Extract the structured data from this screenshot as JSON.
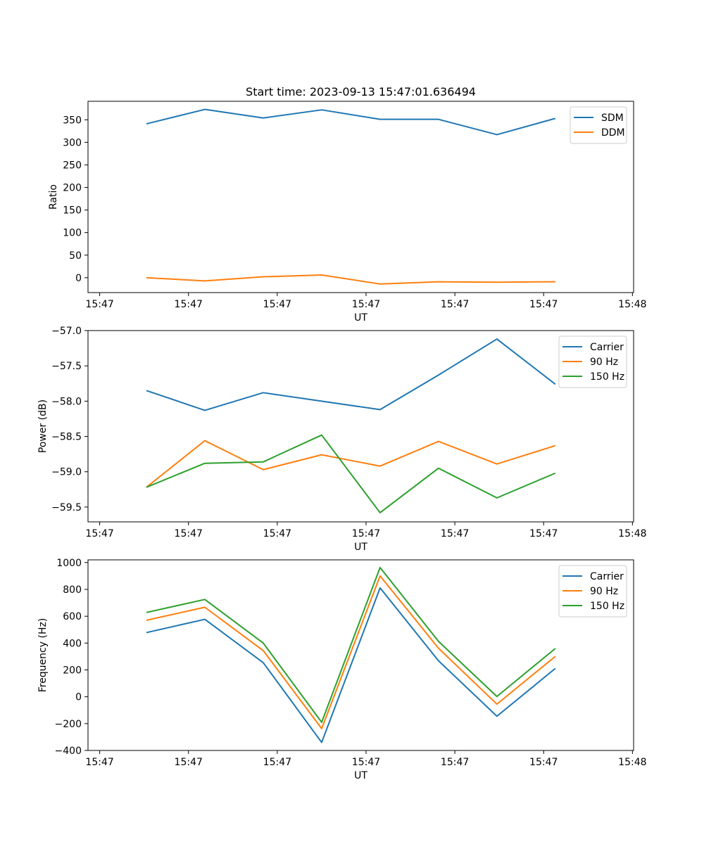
{
  "chart_data": [
    {
      "type": "line",
      "title": "Start time: 2023-09-13 15:47:01.636494",
      "xlabel": "UT",
      "ylabel": "Ratio",
      "x": [
        1,
        2,
        3,
        4,
        5,
        6,
        7,
        8
      ],
      "xticklabels": [
        "15:47",
        "15:47",
        "15:47",
        "15:47",
        "15:47",
        "15:47",
        "15:48"
      ],
      "xticks": [
        0.2,
        1.72,
        3.24,
        4.76,
        6.28,
        7.8,
        9.32
      ],
      "xlim": [
        0.0,
        9.34
      ],
      "ylim": [
        -33,
        391
      ],
      "yticks": [
        0,
        50,
        100,
        150,
        200,
        250,
        300,
        350
      ],
      "yticklabels": [
        "0",
        "50",
        "100",
        "150",
        "200",
        "250",
        "300",
        "350"
      ],
      "legend": "top-right",
      "series": [
        {
          "name": "SDM",
          "color": "#1f77b4",
          "values": [
            341,
            373,
            354,
            372,
            351,
            351,
            317,
            353
          ]
        },
        {
          "name": "DDM",
          "color": "#ff7f0e",
          "values": [
            0,
            -7,
            2,
            6,
            -14,
            -9,
            -10,
            -9
          ]
        }
      ]
    },
    {
      "type": "line",
      "title": "",
      "xlabel": "UT",
      "ylabel": "Power (dB)",
      "x": [
        1,
        2,
        3,
        4,
        5,
        6,
        7,
        8
      ],
      "xticklabels": [
        "15:47",
        "15:47",
        "15:47",
        "15:47",
        "15:47",
        "15:47",
        "15:48"
      ],
      "xticks": [
        0.2,
        1.72,
        3.24,
        4.76,
        6.28,
        7.8,
        9.32
      ],
      "xlim": [
        0.0,
        9.34
      ],
      "ylim": [
        -59.71,
        -57.0
      ],
      "yticks": [
        -57.0,
        -57.5,
        -58.0,
        -58.5,
        -59.0,
        -59.5
      ],
      "yticklabels": [
        "−57.0",
        "−57.5",
        "−58.0",
        "−58.5",
        "−59.0",
        "−59.5"
      ],
      "legend": "top-right",
      "series": [
        {
          "name": "Carrier",
          "color": "#1f77b4",
          "values": [
            -57.85,
            -58.13,
            -57.88,
            -58.0,
            -58.12,
            -57.63,
            -57.12,
            -57.76
          ]
        },
        {
          "name": "90 Hz",
          "color": "#ff7f0e",
          "values": [
            -59.22,
            -58.56,
            -58.97,
            -58.76,
            -58.92,
            -58.57,
            -58.89,
            -58.63
          ]
        },
        {
          "name": "150 Hz",
          "color": "#2ca02c",
          "values": [
            -59.22,
            -58.88,
            -58.86,
            -58.48,
            -59.58,
            -58.95,
            -59.37,
            -59.02
          ]
        }
      ]
    },
    {
      "type": "line",
      "title": "",
      "xlabel": "UT",
      "ylabel": "Frequency (Hz)",
      "x": [
        1,
        2,
        3,
        4,
        5,
        6,
        7,
        8
      ],
      "xticklabels": [
        "15:47",
        "15:47",
        "15:47",
        "15:47",
        "15:47",
        "15:47",
        "15:48"
      ],
      "xticks": [
        0.2,
        1.72,
        3.24,
        4.76,
        6.28,
        7.8,
        9.32
      ],
      "xlim": [
        0.0,
        9.34
      ],
      "ylim": [
        -400,
        1020
      ],
      "yticks": [
        -400,
        -200,
        0,
        200,
        400,
        600,
        800,
        1000
      ],
      "yticklabels": [
        "−400",
        "−200",
        "0",
        "200",
        "400",
        "600",
        "800",
        "1000"
      ],
      "legend": "top-right",
      "series": [
        {
          "name": "Carrier",
          "color": "#1f77b4",
          "values": [
            478,
            577,
            254,
            -340,
            811,
            268,
            -145,
            211
          ]
        },
        {
          "name": "90 Hz",
          "color": "#ff7f0e",
          "values": [
            570,
            667,
            344,
            -237,
            900,
            362,
            -55,
            301
          ]
        },
        {
          "name": "150 Hz",
          "color": "#2ca02c",
          "values": [
            628,
            725,
            400,
            -190,
            963,
            413,
            2,
            360
          ]
        }
      ]
    }
  ]
}
